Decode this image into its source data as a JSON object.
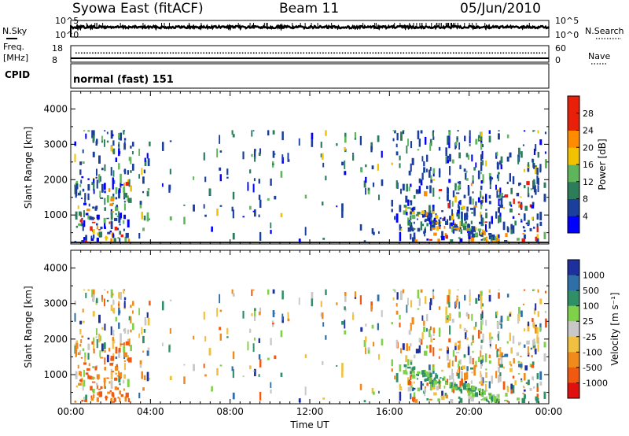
{
  "header": {
    "station": "Syowa East (fitACF)",
    "beam": "Beam 11",
    "date": "05/Jun/2010"
  },
  "top_panels": {
    "nsky_label": "N.Sky",
    "nsearch_label": "N.Search",
    "freq_label_1": "Freq.",
    "freq_label_2": "[MHz]",
    "nave_label": "Nave",
    "cpid_label": "CPID",
    "noise_ticks_left": [
      "10^5",
      "10^0"
    ],
    "noise_ticks_right": [
      "10^5",
      "10^0"
    ],
    "freq_ticks": [
      "18",
      "8"
    ],
    "nave_ticks": [
      "60",
      "0"
    ],
    "cpid_text": "normal (fast) 151"
  },
  "x_axis": {
    "label": "Time UT",
    "ticks": [
      "00:00",
      "04:00",
      "08:00",
      "12:00",
      "16:00",
      "20:00",
      "00:00"
    ]
  },
  "chart_data": [
    {
      "type": "heatmap",
      "panel": "power",
      "ylabel": "Slant Range [km]",
      "xlabel": "",
      "xlim_hours": [
        0,
        24
      ],
      "ylim": [
        180,
        4500
      ],
      "y_ticks": [
        1000,
        2000,
        3000,
        4000
      ],
      "colorbar": {
        "label": "Power [dB]",
        "ticks": [
          "28",
          "24",
          "20",
          "16",
          "12",
          "8",
          "4"
        ],
        "range": [
          0,
          30
        ],
        "colors": [
          "#0000ff",
          "#1a3f9c",
          "#2e7d5a",
          "#5fb55a",
          "#f2c200",
          "#ff8c00",
          "#e8200a"
        ]
      }
    },
    {
      "type": "heatmap",
      "panel": "velocity",
      "ylabel": "Slant Range [km]",
      "xlabel": "Time UT",
      "xlim_hours": [
        0,
        24
      ],
      "ylim": [
        180,
        4500
      ],
      "y_ticks": [
        1000,
        2000,
        3000,
        4000
      ],
      "colorbar": {
        "label": "Velocity [m s⁻¹]",
        "ticks": [
          "1000",
          "500",
          "100",
          "25",
          "-25",
          "-100",
          "-500",
          "-1000"
        ],
        "colors": [
          "#1e2f9e",
          "#2f6fa8",
          "#2f8f66",
          "#7fd14a",
          "#c8c8c8",
          "#f0c040",
          "#f08a1a",
          "#f05a10",
          "#e01010"
        ]
      }
    }
  ]
}
